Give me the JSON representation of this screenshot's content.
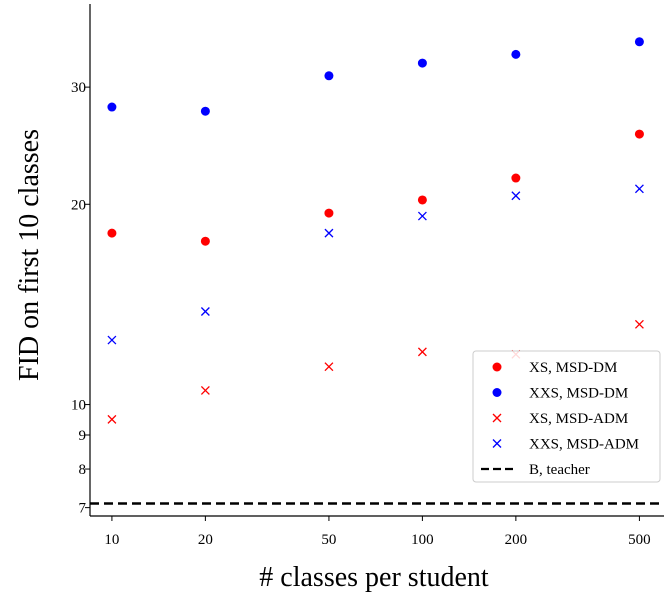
{
  "chart_data": {
    "type": "scatter",
    "title": "",
    "xlabel": "# classes per student",
    "ylabel": "FID on first 10 classes",
    "xscale": "log",
    "yscale": "log",
    "xlim": [
      8.5,
      600
    ],
    "ylim": [
      6.8,
      40
    ],
    "x_ticks": [
      10,
      20,
      50,
      100,
      200,
      500
    ],
    "y_ticks": [
      7,
      8,
      9,
      10,
      20,
      30
    ],
    "grid": false,
    "legend_position": "lower-right",
    "series": [
      {
        "name": "XS, MSD-DM",
        "marker": "circle",
        "color": "#ff0000",
        "x": [
          10,
          20,
          50,
          100,
          200,
          500
        ],
        "y": [
          18.1,
          17.6,
          19.4,
          20.3,
          21.9,
          25.5
        ]
      },
      {
        "name": "XXS, MSD-DM",
        "marker": "circle",
        "color": "#0000ff",
        "x": [
          10,
          20,
          50,
          100,
          200,
          500
        ],
        "y": [
          28.0,
          27.6,
          31.2,
          32.6,
          33.6,
          35.1
        ]
      },
      {
        "name": "XS, MSD-ADM",
        "marker": "x",
        "color": "#ff0000",
        "x": [
          10,
          20,
          50,
          100,
          200,
          500
        ],
        "y": [
          9.5,
          10.5,
          11.4,
          12.0,
          11.9,
          13.2
        ]
      },
      {
        "name": "XXS, MSD-ADM",
        "marker": "x",
        "color": "#0000ff",
        "x": [
          10,
          20,
          50,
          100,
          200,
          500
        ],
        "y": [
          12.5,
          13.8,
          18.1,
          19.2,
          20.6,
          21.1
        ]
      }
    ],
    "reference_line": {
      "name": "B, teacher",
      "y": 7.1,
      "color": "#000000",
      "style": "dashed"
    }
  }
}
